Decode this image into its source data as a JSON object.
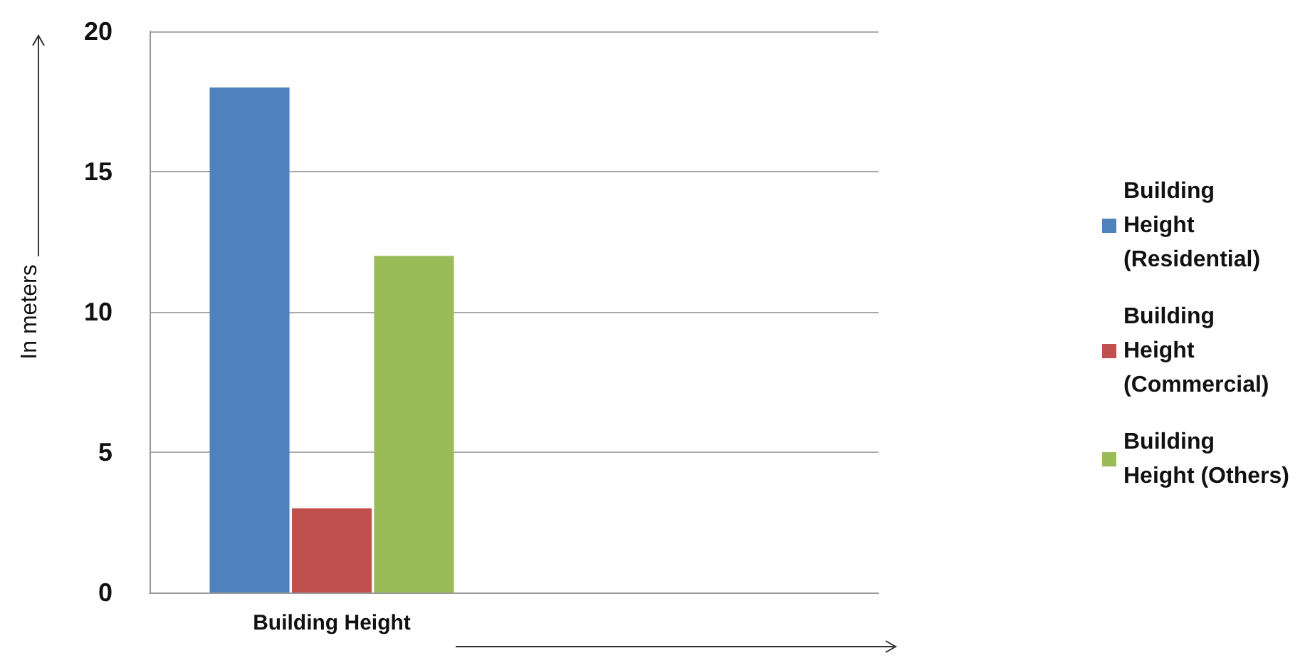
{
  "chart_data": {
    "type": "bar",
    "ylabel": "In meters",
    "categories": [
      "Building Height",
      null
    ],
    "series": [
      {
        "name": "Building Height (Residential)",
        "color": "#4f81bd",
        "values": [
          18,
          null
        ]
      },
      {
        "name": "Building Height (Commercial)",
        "color": "#c0504d",
        "values": [
          3,
          null
        ]
      },
      {
        "name": "Building Height (Others)",
        "color": "#9bbb59",
        "values": [
          12,
          null
        ]
      }
    ],
    "ylim": [
      0,
      20
    ],
    "yticks": [
      0,
      5,
      10,
      15,
      20
    ],
    "grid": "y",
    "legend": "right"
  }
}
